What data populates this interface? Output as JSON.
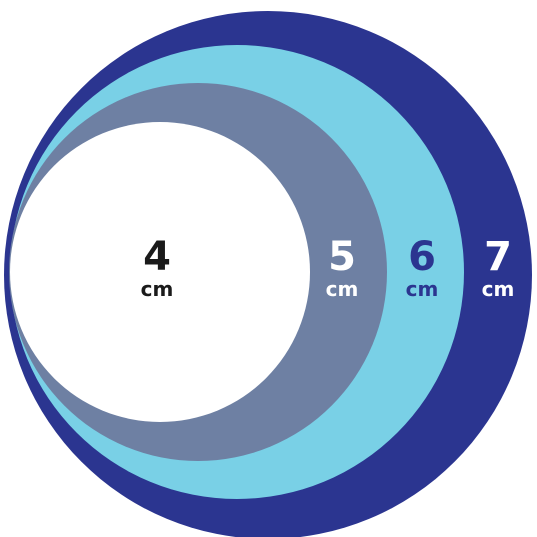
{
  "circles": [
    {
      "size": "4",
      "unit": "cm",
      "fill": "#ffffff",
      "text_color": "#1a1a1a"
    },
    {
      "size": "5",
      "unit": "cm",
      "fill": "#6e80a3",
      "text_color": "#ffffff"
    },
    {
      "size": "6",
      "unit": "cm",
      "fill": "#79d0e6",
      "text_color": "#2b3590"
    },
    {
      "size": "7",
      "unit": "cm",
      "fill": "#2b3590",
      "text_color": "#ffffff"
    }
  ]
}
